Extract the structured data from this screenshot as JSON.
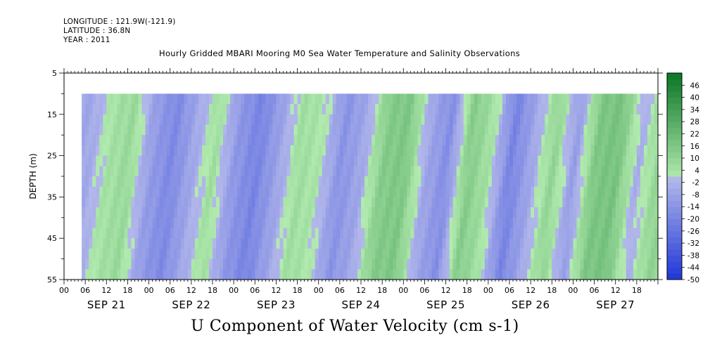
{
  "header": {
    "longitude": "LONGITUDE : 121.9W(-121.9)",
    "latitude": "LATITUDE : 36.8N",
    "year": "YEAR : 2011",
    "title": "Hourly Gridded MBARI Mooring M0 Sea Water Temperature and Salinity Observations"
  },
  "bottom_title": "U Component of Water Velocity (cm s-1)",
  "chart_data": {
    "type": "heatmap",
    "title": "Hourly Gridded MBARI Mooring M0 Sea Water Temperature and Salinity Observations",
    "subtitle": "U Component of Water Velocity (cm s-1)",
    "xlabel": "",
    "ylabel": "DEPTH (m)",
    "x_start_hour": 0,
    "x_end_hour": 168,
    "data_start_hour": 5,
    "ylim": [
      55,
      5
    ],
    "data_depth_top": 10,
    "y_ticks": [
      5,
      15,
      25,
      35,
      45,
      55
    ],
    "y_tick_labels": [
      "5",
      "15",
      "25",
      "35",
      "45",
      "55"
    ],
    "x_hour_ticks": [
      "00",
      "06",
      "12",
      "18",
      "00",
      "06",
      "12",
      "18",
      "00",
      "06",
      "12",
      "18",
      "00",
      "06",
      "12",
      "18",
      "00",
      "06",
      "12",
      "18",
      "00",
      "06",
      "12",
      "18",
      "00",
      "06",
      "12",
      "18"
    ],
    "x_day_labels": [
      "SEP 21",
      "SEP 22",
      "SEP 23",
      "SEP 24",
      "SEP 25",
      "SEP 26",
      "SEP 27"
    ],
    "colorbar": {
      "labels": [
        "46",
        "40",
        "34",
        "28",
        "22",
        "16",
        "10",
        "4",
        "-2",
        "-8",
        "-14",
        "-20",
        "-26",
        "-32",
        "-38",
        "-44",
        "-50"
      ],
      "range": [
        -50,
        52
      ]
    },
    "u_profile_hours": [
      0,
      6,
      12,
      18,
      24,
      30,
      36,
      42,
      48,
      54,
      60,
      66,
      72,
      78,
      84,
      90,
      96,
      102,
      108,
      114,
      120,
      126,
      132,
      138,
      144,
      150,
      156,
      162,
      168
    ],
    "u_profile_values": [
      -8,
      -6,
      4,
      8,
      -10,
      -18,
      -6,
      6,
      -12,
      -20,
      -8,
      6,
      2,
      -14,
      -6,
      14,
      16,
      -6,
      -16,
      14,
      4,
      -20,
      -6,
      10,
      -10,
      16,
      18,
      -4,
      10
    ],
    "colors": {
      "negative_light": "#b3b8ea",
      "negative_dark": "#1f36d8",
      "positive_light": "#b3ebb0",
      "positive_dark": "#0f7a2a",
      "frame": "#000000"
    }
  }
}
